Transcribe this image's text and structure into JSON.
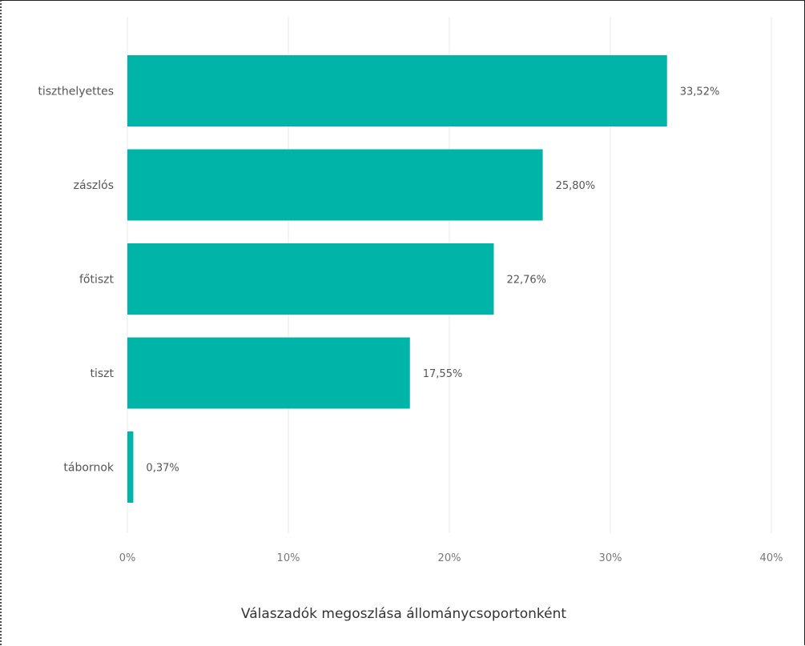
{
  "chart_data": {
    "type": "bar",
    "orientation": "horizontal",
    "categories": [
      "tiszthelyettes",
      "zászlós",
      "főtiszt",
      "tiszt",
      "tábornok"
    ],
    "values": [
      33.52,
      25.8,
      22.76,
      17.55,
      0.37
    ],
    "value_labels": [
      "33,52%",
      "25,80%",
      "22,76%",
      "17,55%",
      "0,37%"
    ],
    "xlim": [
      0,
      40
    ],
    "x_ticks": [
      0,
      10,
      20,
      30,
      40
    ],
    "x_tick_labels": [
      "0%",
      "10%",
      "20%",
      "30%",
      "40%"
    ],
    "xlabel": "Válaszadók megoszlása állománycsoportonként",
    "ylabel": "",
    "grid": "vertical",
    "legend": "none",
    "bar_color": "#00b5a8"
  }
}
